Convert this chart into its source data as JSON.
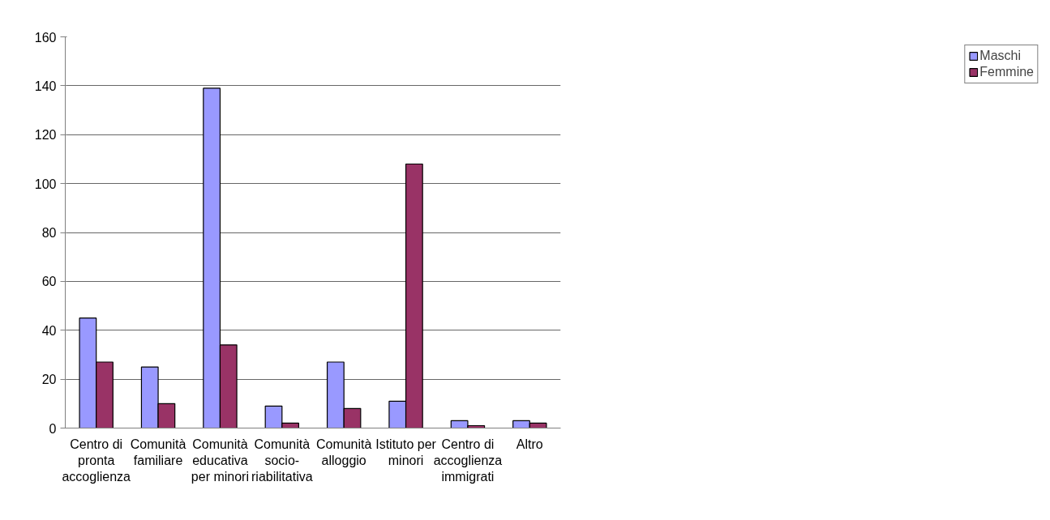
{
  "chart_data": {
    "type": "bar",
    "categories": [
      "Centro di pronta accoglienza",
      "Comunità familiare",
      "Comunità educativa per minori",
      "Comunità socio-riabilitativa",
      "Comunità alloggio",
      "Istituto per minori",
      "Centro di accoglienza immigrati",
      "Altro"
    ],
    "series": [
      {
        "name": "Maschi",
        "color": "#9999ff",
        "values": [
          45,
          25,
          139,
          9,
          27,
          11,
          3,
          3
        ]
      },
      {
        "name": "Femmine",
        "color": "#993366",
        "values": [
          27,
          10,
          34,
          2,
          8,
          108,
          1,
          2
        ]
      }
    ],
    "ylim": [
      0,
      160
    ],
    "yticks": [
      0,
      20,
      40,
      60,
      80,
      100,
      120,
      140,
      160
    ],
    "grid": "y",
    "legend": "right"
  }
}
